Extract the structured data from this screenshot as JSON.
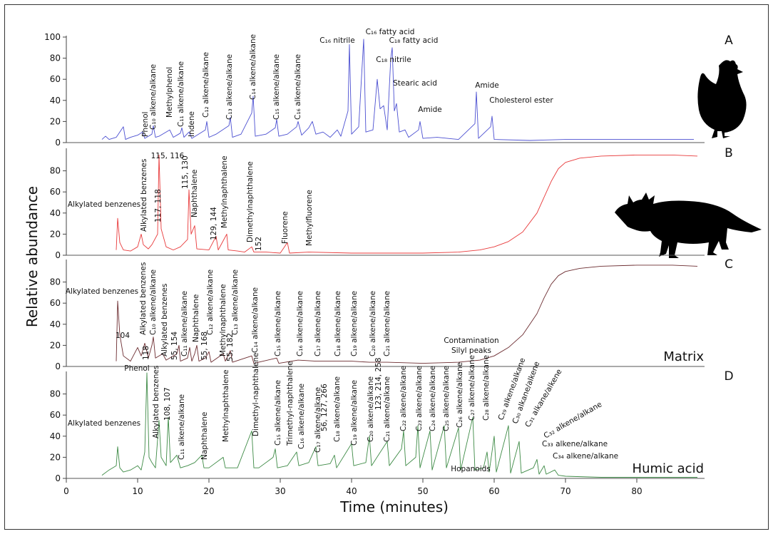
{
  "chart_data": {
    "type": "line",
    "ylabel": "Relative abundance",
    "xlabel": "Time (minutes)",
    "xlim": [
      0,
      89.5
    ],
    "xticks": [
      0,
      10,
      20,
      30,
      40,
      50,
      60,
      70,
      80
    ],
    "panels": [
      {
        "label": "A",
        "color": "#4b4fd1",
        "ylim": [
          0,
          100
        ],
        "yticks": [
          0,
          20,
          40,
          60,
          80,
          100
        ],
        "x": [
          5,
          5.5,
          6,
          7,
          8,
          8.3,
          9,
          10,
          10.7,
          11,
          12,
          12.2,
          12.5,
          13,
          14.5,
          15,
          16,
          16.2,
          16.5,
          17.2,
          17.6,
          19.5,
          19.7,
          20,
          21,
          22.8,
          23,
          23.3,
          24.5,
          26,
          26.2,
          26.5,
          28,
          29.3,
          29.5,
          29.8,
          31,
          32.3,
          32.5,
          33,
          34,
          34.5,
          35,
          36,
          37,
          38,
          38.5,
          39.5,
          39.7,
          40,
          41,
          41.7,
          42,
          43,
          43.6,
          44,
          44.5,
          45,
          45.5,
          45.7,
          46,
          46.3,
          46.7,
          47.5,
          48,
          49.4,
          49.6,
          50,
          52,
          55,
          57.3,
          57.5,
          57.8,
          59.5,
          59.7,
          60,
          65,
          70,
          80,
          88
        ],
        "values": [
          3,
          6,
          3,
          5,
          15,
          3,
          5,
          7,
          10,
          4,
          8,
          16,
          5,
          6,
          12,
          5,
          9,
          14,
          5,
          10,
          4,
          12,
          20,
          5,
          8,
          16,
          24,
          5,
          8,
          28,
          44,
          6,
          8,
          14,
          22,
          6,
          8,
          15,
          20,
          7,
          14,
          20,
          8,
          10,
          5,
          12,
          6,
          30,
          93,
          8,
          15,
          98,
          10,
          12,
          60,
          32,
          35,
          12,
          80,
          90,
          30,
          37,
          10,
          12,
          5,
          12,
          20,
          4,
          5,
          3,
          18,
          48,
          4,
          15,
          25,
          3,
          2,
          3,
          3,
          3
        ],
        "annotations": [
          "Phenol",
          "C₁₀ alkene/alkane",
          "Methylphenol",
          "C₁₁ alkene/alkane",
          "Indene",
          "C₁₂ alkene/alkane",
          "C₁₃ alkene/alkane",
          "C₁₄ alkene/alkane",
          "C₁₅ alkene/alkane",
          "C₁₆ alkene/alkane",
          "C₁₆ nitrile",
          "C₁₆ fatty acid",
          "C₁₈ fatty acid",
          "C₁₈ nitrile",
          "Stearic acid",
          "Amide",
          "Amide",
          "Cholesterol ester"
        ]
      },
      {
        "label": "B",
        "color": "#e8393a",
        "ylim": [
          0,
          100
        ],
        "yticks": [
          0,
          20,
          40,
          60,
          80
        ],
        "x": [
          7,
          7.2,
          7.5,
          8,
          9,
          10,
          10.5,
          10.8,
          11.5,
          12,
          12.8,
          13,
          13.3,
          14,
          15,
          16,
          17,
          17.2,
          17.5,
          18,
          18.3,
          20,
          21,
          21.3,
          22.5,
          22.7,
          24,
          25,
          26,
          26.3,
          28,
          30,
          31,
          31.3,
          34,
          40,
          45,
          50,
          55,
          58,
          60,
          62,
          64,
          66,
          67,
          68,
          69,
          70,
          72,
          75,
          80,
          85,
          88.5
        ],
        "values": [
          5,
          35,
          12,
          5,
          4,
          8,
          20,
          10,
          6,
          10,
          20,
          95,
          25,
          8,
          5,
          8,
          15,
          62,
          20,
          28,
          6,
          5,
          18,
          5,
          20,
          5,
          4,
          3,
          8,
          3,
          3,
          2,
          12,
          2,
          3,
          2,
          2,
          2,
          3,
          5,
          8,
          13,
          22,
          40,
          55,
          70,
          82,
          88,
          92,
          94,
          95,
          95,
          94
        ],
        "annotations": [
          "Alkylated benzenes",
          "Alkylated benzenes",
          "115, 116",
          "117, 118",
          "115, 130",
          "Naphthalene",
          "129, 144",
          "Methylnaphthalene",
          "Dimethylnaphthalene",
          "152",
          "Fluorene",
          "Methylfluorene"
        ]
      },
      {
        "label": "C",
        "name": "Matrix",
        "color": "#6b2b2f",
        "ylim": [
          0,
          100
        ],
        "yticks": [
          0,
          20,
          40,
          60,
          80
        ],
        "x": [
          7,
          7.2,
          7.5,
          8,
          9,
          10,
          10.5,
          11,
          11.5,
          12,
          12.2,
          12.5,
          13.5,
          14,
          15.5,
          15.8,
          16,
          17,
          17.3,
          17.6,
          18,
          18.3,
          18.6,
          19.5,
          20,
          20.3,
          22,
          22.3,
          23,
          23.3,
          26,
          26.3,
          29.5,
          29.8,
          32.5,
          35,
          37.5,
          40,
          42.5,
          45,
          50,
          55,
          58,
          60,
          62,
          64,
          66,
          67,
          68,
          69,
          70,
          72,
          75,
          80,
          85,
          88.5
        ],
        "values": [
          5,
          62,
          30,
          10,
          5,
          18,
          10,
          22,
          8,
          20,
          28,
          8,
          12,
          6,
          12,
          20,
          5,
          8,
          18,
          5,
          12,
          20,
          5,
          8,
          14,
          4,
          12,
          5,
          15,
          4,
          10,
          3,
          8,
          3,
          6,
          5,
          5,
          5,
          4,
          4,
          3,
          4,
          6,
          10,
          18,
          30,
          50,
          65,
          78,
          86,
          90,
          93,
          95,
          96,
          96,
          95
        ],
        "annotations": [
          "Alkylated benzenes",
          "104",
          "Alkylated benzenes",
          "118",
          "C₁₀ alkene/alkane",
          "Alkylated benzenes",
          "55, 154",
          "C₁₁ alkene/alkane",
          "Naphthalene",
          "55, 168",
          "C₁₂ alkene/alkane",
          "Methylnaphthalene",
          "55, 182",
          "C₁₃ alkene/alkane",
          "C₁₄ alkene/alkane",
          "C₁₅ alkene/alkane",
          "C₁₆ alkene/alkane",
          "C₁₇ alkene/alkane",
          "C₁₈ alkene/alkane",
          "C₁₉ alkene/alkane",
          "C₂₀ alkene/alkane",
          "C₂₁ alkene/alkane",
          "Contamination",
          "Silyl peaks"
        ]
      },
      {
        "label": "D",
        "name": "Humic acid",
        "color": "#3d8a45",
        "ylim": [
          0,
          100
        ],
        "yticks": [
          0,
          20,
          40,
          60,
          80
        ],
        "x": [
          5,
          6,
          7,
          7.2,
          7.5,
          8,
          9,
          10,
          10.5,
          11,
          11.3,
          11.6,
          12,
          12.5,
          13,
          13.3,
          14,
          14.3,
          14.6,
          15.5,
          16,
          17,
          18,
          19,
          19.3,
          20,
          22,
          22.3,
          24,
          26,
          26.3,
          27,
          29,
          29.3,
          29.6,
          31,
          32.3,
          32.6,
          34,
          35,
          35.3,
          37,
          37.6,
          37.9,
          40,
          40.3,
          42,
          42.5,
          42.8,
          45,
          45.3,
          47,
          47.3,
          47.6,
          49,
          49.3,
          49.6,
          51,
          51.3,
          53,
          53.3,
          55,
          55.3,
          57,
          57.3,
          58.5,
          59,
          59.3,
          60,
          60.3,
          62,
          62.3,
          63.5,
          63.8,
          65.5,
          66,
          66.3,
          67,
          67.3,
          68.5,
          69,
          70,
          75,
          80,
          85,
          88.5
        ],
        "values": [
          3,
          8,
          12,
          30,
          10,
          6,
          8,
          12,
          8,
          25,
          100,
          20,
          15,
          10,
          55,
          20,
          12,
          58,
          15,
          22,
          10,
          12,
          15,
          22,
          10,
          10,
          20,
          10,
          10,
          45,
          10,
          10,
          20,
          28,
          10,
          12,
          25,
          12,
          15,
          30,
          12,
          14,
          22,
          10,
          33,
          12,
          15,
          40,
          12,
          35,
          12,
          28,
          45,
          12,
          20,
          50,
          10,
          45,
          8,
          50,
          10,
          48,
          8,
          58,
          8,
          10,
          25,
          6,
          40,
          6,
          50,
          5,
          35,
          5,
          10,
          18,
          4,
          12,
          4,
          8,
          3,
          2,
          1,
          1,
          1,
          1
        ],
        "annotations": [
          "Phenol",
          "Alkylated benzenes",
          "Alkylated benzenes",
          "108, 107",
          "C₁₁ alkene/alkane",
          "Naphthalene",
          "Methylnaphthalene",
          "Dimethyl-naphthalene",
          "C₁₅ alkene/alkane",
          "Trimethyl-naphthalene",
          "C₁₆ alkene/alkane",
          "C₁₇ alkene/alkane",
          "56, 127, 266",
          "C₁₈ alkene/alkane",
          "C₁₉ alkene/alkane",
          "C₂₀ alkene/alkane",
          "123, 214, 258",
          "C₂₁ alkene/alkane",
          "C₂₂ alkene/alkane",
          "C₂₃ alkene/alkane",
          "C₂₄ alkene/alkane",
          "C₂₅ alkene/alkane",
          "C₂₆ alkene/alkane",
          "C₂₇ alkene/alkane",
          "C₂₈ alkene/alkane",
          "C₂₉ alkene/alkane",
          "C₃₀ alkane/alkene",
          "C₃₁ alkane/alkene",
          "C₃₂ alkene/alkane",
          "C₃₃ alkene/alkane",
          "C₃₄ alkene/alkane",
          "Hopanoids"
        ]
      }
    ]
  }
}
